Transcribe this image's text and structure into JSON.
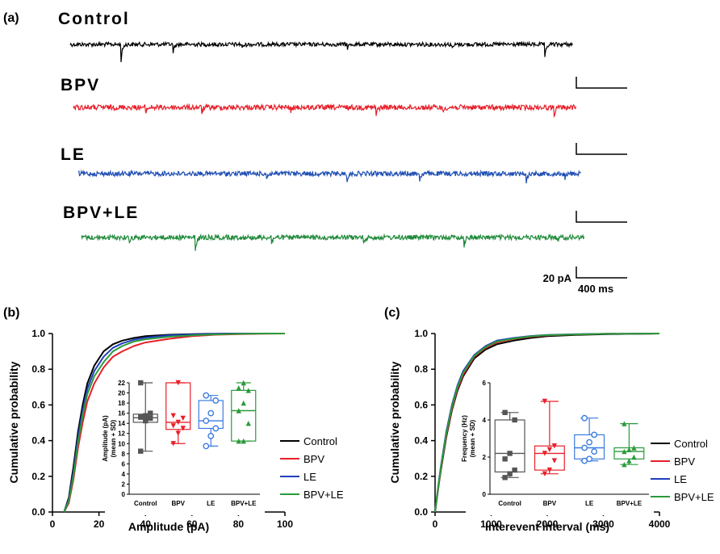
{
  "panel_a": {
    "label": "(a)",
    "traces": [
      {
        "name": "Control",
        "color": "#000000"
      },
      {
        "name": "BPV",
        "color": "#e8202a"
      },
      {
        "name": "LE",
        "color": "#1f4fb4"
      },
      {
        "name": "BPV+LE",
        "color": "#1f8a3a"
      }
    ],
    "scale_bar": {
      "current": "20 pA",
      "time": "400 ms"
    }
  },
  "chart_data": [
    {
      "panel": "(b)",
      "type": "line",
      "xlabel": "Amplitude (pA)",
      "ylabel": "Cumulative probability",
      "xlim": [
        0,
        100
      ],
      "ylim": [
        0,
        1.0
      ],
      "xticks": [
        0,
        20,
        40,
        60,
        80,
        100
      ],
      "yticks": [
        0.0,
        0.2,
        0.4,
        0.6,
        0.8,
        1.0
      ],
      "legend_position": "right",
      "series": [
        {
          "name": "Control",
          "color": "#000000",
          "x": [
            5,
            7,
            9,
            11,
            13,
            15,
            18,
            22,
            26,
            30,
            35,
            40,
            50,
            60,
            70,
            80,
            90,
            100
          ],
          "y": [
            0,
            0.08,
            0.25,
            0.45,
            0.6,
            0.72,
            0.82,
            0.9,
            0.94,
            0.96,
            0.975,
            0.985,
            0.993,
            0.997,
            0.999,
            1,
            1,
            1
          ]
        },
        {
          "name": "BPV",
          "color": "#e8202a",
          "x": [
            5,
            7,
            9,
            11,
            13,
            15,
            18,
            22,
            26,
            30,
            35,
            40,
            50,
            60,
            70,
            80,
            90,
            100
          ],
          "y": [
            0,
            0.05,
            0.18,
            0.36,
            0.5,
            0.62,
            0.72,
            0.81,
            0.87,
            0.9,
            0.93,
            0.95,
            0.97,
            0.985,
            0.993,
            0.997,
            0.999,
            1
          ]
        },
        {
          "name": "LE",
          "color": "#1f3fbf",
          "x": [
            5,
            7,
            9,
            11,
            13,
            15,
            18,
            22,
            26,
            30,
            35,
            40,
            50,
            60,
            70,
            80,
            90,
            100
          ],
          "y": [
            0,
            0.07,
            0.22,
            0.42,
            0.57,
            0.69,
            0.79,
            0.87,
            0.92,
            0.945,
            0.965,
            0.977,
            0.99,
            0.995,
            0.998,
            1,
            1,
            1
          ]
        },
        {
          "name": "BPV+LE",
          "color": "#2a9a3a",
          "x": [
            5,
            7,
            9,
            11,
            13,
            15,
            18,
            22,
            26,
            30,
            35,
            40,
            50,
            60,
            70,
            80,
            90,
            100
          ],
          "y": [
            0,
            0.06,
            0.2,
            0.39,
            0.54,
            0.66,
            0.76,
            0.84,
            0.9,
            0.93,
            0.955,
            0.968,
            0.982,
            0.99,
            0.995,
            0.998,
            1,
            1
          ]
        }
      ],
      "inset": {
        "type": "box",
        "ylabel_lines": [
          "Amplitude (pA)",
          "(mean + SD)"
        ],
        "ylim": [
          0,
          22
        ],
        "yticks": [
          0,
          2,
          4,
          6,
          8,
          10,
          12,
          14,
          16,
          18,
          20,
          22
        ],
        "groups": [
          {
            "name": "Control",
            "color": "#555555",
            "marker": "square",
            "min": 8.5,
            "q1": 14.2,
            "median": 15.1,
            "q3": 15.8,
            "max": 22,
            "points": [
              8.5,
              14.5,
              15.0,
              15.2,
              15.5,
              16.0,
              22
            ]
          },
          {
            "name": "BPV",
            "color": "#e8202a",
            "marker": "triangle-down",
            "min": 10,
            "q1": 12.8,
            "median": 14.2,
            "q3": 22,
            "max": 22,
            "points": [
              10,
              12,
              13,
              13.5,
              14.2,
              15,
              15.5,
              22
            ]
          },
          {
            "name": "LE",
            "color": "#3b7be0",
            "marker": "circle",
            "min": 9.5,
            "q1": 13,
            "median": 14.5,
            "q3": 18.5,
            "max": 19.5,
            "points": [
              9.5,
              11.5,
              13,
              14.5,
              16,
              18.5,
              19.5
            ]
          },
          {
            "name": "BPV+LE",
            "color": "#2a9a3a",
            "marker": "triangle-up",
            "min": 10.5,
            "q1": 10.5,
            "median": 16.5,
            "q3": 20.5,
            "max": 22,
            "points": [
              10.5,
              10.5,
              14,
              16.5,
              18,
              20.5,
              21,
              22
            ]
          }
        ]
      }
    },
    {
      "panel": "(c)",
      "type": "line",
      "xlabel": "Interevent interval (ms)",
      "ylabel": "Cumulative probability",
      "xlim": [
        0,
        4000
      ],
      "ylim": [
        0,
        1.0
      ],
      "xticks": [
        0,
        1000,
        2000,
        3000,
        4000
      ],
      "yticks": [
        0.0,
        0.2,
        0.4,
        0.6,
        0.8,
        1.0
      ],
      "legend_position": "right",
      "series": [
        {
          "name": "Control",
          "color": "#000000",
          "x": [
            0,
            50,
            100,
            200,
            300,
            400,
            500,
            700,
            900,
            1100,
            1400,
            1700,
            2000,
            2500,
            3000,
            3500,
            4000
          ],
          "y": [
            0,
            0.12,
            0.23,
            0.42,
            0.57,
            0.68,
            0.76,
            0.86,
            0.91,
            0.94,
            0.96,
            0.975,
            0.985,
            0.992,
            0.996,
            0.998,
            1
          ]
        },
        {
          "name": "BPV",
          "color": "#e8202a",
          "x": [
            0,
            50,
            100,
            200,
            300,
            400,
            500,
            700,
            900,
            1100,
            1400,
            1700,
            2000,
            2500,
            3000,
            3500,
            4000
          ],
          "y": [
            0,
            0.12,
            0.24,
            0.43,
            0.58,
            0.69,
            0.77,
            0.87,
            0.92,
            0.95,
            0.97,
            0.982,
            0.99,
            0.995,
            0.998,
            0.999,
            1
          ]
        },
        {
          "name": "LE",
          "color": "#1f3fbf",
          "x": [
            0,
            50,
            100,
            200,
            300,
            400,
            500,
            700,
            900,
            1100,
            1400,
            1700,
            2000,
            2500,
            3000,
            3500,
            4000
          ],
          "y": [
            0,
            0.13,
            0.25,
            0.45,
            0.6,
            0.71,
            0.79,
            0.88,
            0.93,
            0.96,
            0.975,
            0.986,
            0.992,
            0.996,
            0.998,
            0.999,
            1
          ]
        },
        {
          "name": "BPV+LE",
          "color": "#2a9a3a",
          "x": [
            0,
            50,
            100,
            200,
            300,
            400,
            500,
            700,
            900,
            1100,
            1400,
            1700,
            2000,
            2500,
            3000,
            3500,
            4000
          ],
          "y": [
            0,
            0.125,
            0.245,
            0.44,
            0.59,
            0.7,
            0.78,
            0.875,
            0.925,
            0.955,
            0.972,
            0.984,
            0.991,
            0.995,
            0.998,
            0.999,
            1
          ]
        }
      ],
      "inset": {
        "type": "box",
        "ylabel_lines": [
          "Frequency (Hz)",
          "(mean + SD)"
        ],
        "ylim": [
          0,
          6
        ],
        "yticks": [
          0,
          2,
          4,
          6
        ],
        "groups": [
          {
            "name": "Control",
            "color": "#555555",
            "marker": "square",
            "min": 0.9,
            "q1": 1.2,
            "median": 2.2,
            "q3": 4.0,
            "max": 4.4,
            "points": [
              0.9,
              1.1,
              1.3,
              1.9,
              2.2,
              4.0,
              4.4
            ]
          },
          {
            "name": "BPV",
            "color": "#e8202a",
            "marker": "triangle-down",
            "min": 1.1,
            "q1": 1.3,
            "median": 2.2,
            "q3": 2.6,
            "max": 5.0,
            "points": [
              1.1,
              1.3,
              1.8,
              2.2,
              2.4,
              2.6,
              5.0
            ]
          },
          {
            "name": "LE",
            "color": "#3b7be0",
            "marker": "circle",
            "min": 1.8,
            "q1": 1.9,
            "median": 2.5,
            "q3": 3.2,
            "max": 4.1,
            "points": [
              1.8,
              1.9,
              2.3,
              2.5,
              2.8,
              3.2,
              4.1
            ]
          },
          {
            "name": "BPV+LE",
            "color": "#2a9a3a",
            "marker": "triangle-up",
            "min": 1.6,
            "q1": 1.9,
            "median": 2.3,
            "q3": 2.5,
            "max": 3.8,
            "points": [
              1.6,
              1.8,
              2.0,
              2.3,
              2.4,
              2.5,
              3.8
            ]
          }
        ]
      }
    }
  ]
}
